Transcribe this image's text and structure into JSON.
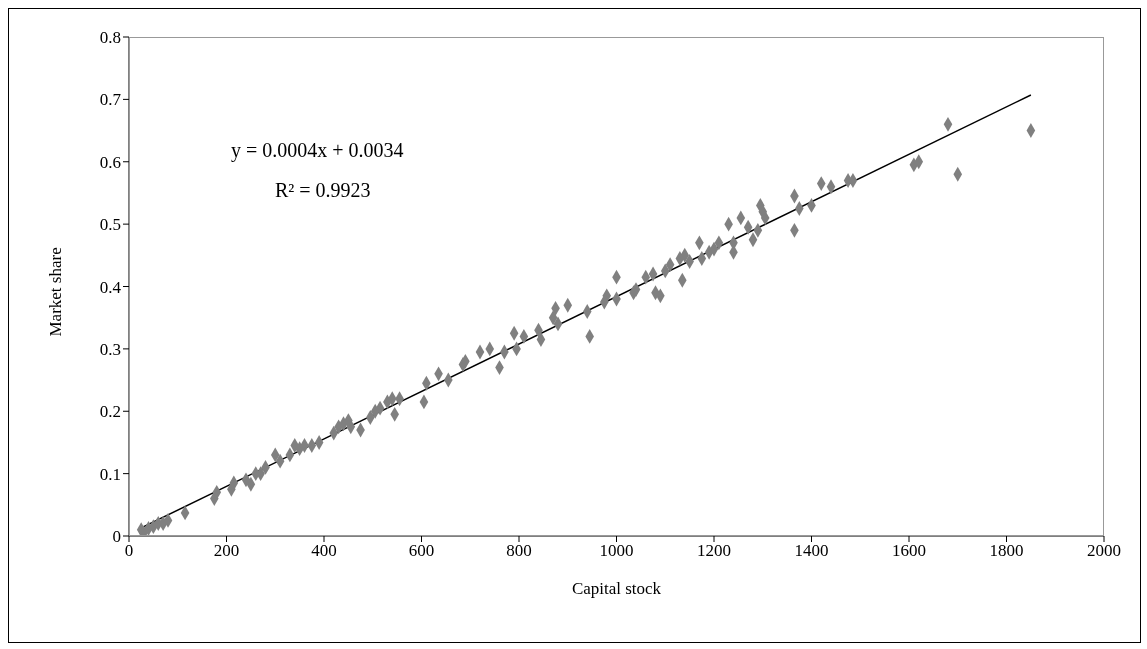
{
  "chart_data": {
    "type": "scatter",
    "xlabel": "Capital stock",
    "ylabel": "Market share",
    "annotations": [
      "y = 0.0004x + 0.0034",
      "R² = 0.9923"
    ],
    "xlim": [
      0,
      2000
    ],
    "xticks": [
      0,
      200,
      400,
      600,
      800,
      1000,
      1200,
      1400,
      1600,
      1800,
      2000
    ],
    "ylim": [
      0,
      0.8
    ],
    "yticks": [
      0,
      0.1,
      0.2,
      0.3,
      0.4,
      0.5,
      0.6,
      0.7,
      0.8
    ],
    "grid": false,
    "legend": false,
    "marker": "diamond",
    "series": [
      {
        "color": "#808080",
        "x": [
          25,
          30,
          40,
          50,
          60,
          70,
          80,
          115,
          175,
          180,
          210,
          215,
          240,
          250,
          260,
          270,
          280,
          300,
          310,
          330,
          340,
          350,
          360,
          375,
          390,
          420,
          430,
          440,
          450,
          455,
          475,
          495,
          505,
          515,
          530,
          540,
          545,
          555,
          605,
          610,
          635,
          655,
          685,
          690,
          720,
          740,
          760,
          770,
          790,
          795,
          810,
          840,
          845,
          870,
          875,
          880,
          900,
          940,
          945,
          975,
          980,
          1000,
          1000,
          1035,
          1040,
          1060,
          1075,
          1080,
          1090,
          1100,
          1110,
          1130,
          1135,
          1140,
          1150,
          1170,
          1175,
          1190,
          1200,
          1210,
          1230,
          1240,
          1240,
          1255,
          1270,
          1280,
          1290,
          1295,
          1300,
          1305,
          1365,
          1365,
          1375,
          1400,
          1420,
          1440,
          1475,
          1485,
          1610,
          1620,
          1680,
          1700,
          1850
        ],
        "values": [
          0.01,
          0.005,
          0.012,
          0.015,
          0.02,
          0.02,
          0.025,
          0.037,
          0.06,
          0.07,
          0.075,
          0.085,
          0.09,
          0.083,
          0.1,
          0.1,
          0.11,
          0.13,
          0.12,
          0.13,
          0.145,
          0.14,
          0.145,
          0.145,
          0.15,
          0.165,
          0.175,
          0.18,
          0.185,
          0.175,
          0.17,
          0.19,
          0.2,
          0.205,
          0.215,
          0.22,
          0.195,
          0.22,
          0.215,
          0.245,
          0.26,
          0.25,
          0.275,
          0.28,
          0.295,
          0.3,
          0.27,
          0.295,
          0.325,
          0.3,
          0.32,
          0.33,
          0.315,
          0.35,
          0.365,
          0.34,
          0.37,
          0.36,
          0.32,
          0.375,
          0.385,
          0.415,
          0.38,
          0.39,
          0.395,
          0.415,
          0.42,
          0.39,
          0.385,
          0.425,
          0.435,
          0.445,
          0.41,
          0.45,
          0.44,
          0.47,
          0.445,
          0.455,
          0.46,
          0.47,
          0.5,
          0.455,
          0.47,
          0.51,
          0.495,
          0.475,
          0.49,
          0.53,
          0.52,
          0.51,
          0.545,
          0.49,
          0.525,
          0.53,
          0.565,
          0.56,
          0.57,
          0.57,
          0.595,
          0.6,
          0.66,
          0.58,
          0.65
        ]
      },
      {
        "type": "line",
        "color": "#000000",
        "line_style": "solid",
        "marker": "none",
        "x": [
          25,
          1850
        ],
        "values": [
          0.013,
          0.707
        ]
      }
    ]
  }
}
